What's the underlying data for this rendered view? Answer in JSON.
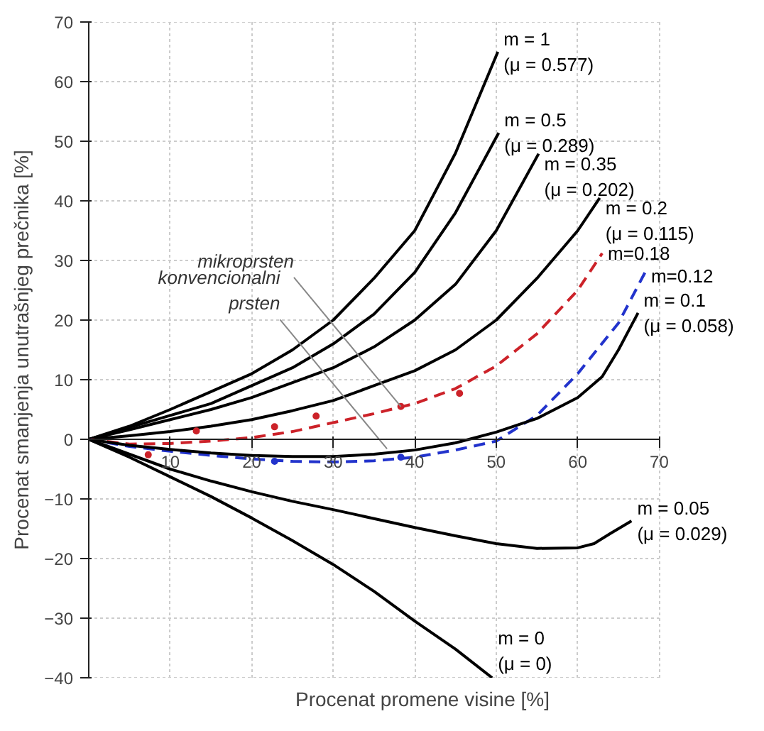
{
  "chart_data": {
    "type": "line",
    "xlabel": "Procenat promene visine [%]",
    "ylabel": "Procenat smanjenja unutrašnjeg prečnika [%]",
    "xlim": [
      0,
      70
    ],
    "ylim": [
      -40,
      70
    ],
    "xticks": [
      10,
      20,
      30,
      40,
      50,
      60,
      70
    ],
    "yticks": [
      -40,
      -30,
      -20,
      -10,
      0,
      10,
      20,
      30,
      40,
      50,
      60,
      70
    ],
    "grid": true,
    "legend": false,
    "marker": "none",
    "series": [
      {
        "name": "m = 1\n(μ = 0.577)",
        "color": "#000000",
        "line_style": "solid",
        "x": [
          0,
          5,
          10,
          15,
          20,
          25,
          30,
          35,
          40,
          45,
          50.2
        ],
        "values": [
          0,
          2.2,
          5,
          8,
          11,
          15,
          20,
          27,
          35,
          48,
          65
        ]
      },
      {
        "name": "m = 0.5\n(μ = 0.289)",
        "color": "#000000",
        "line_style": "solid",
        "x": [
          0,
          5,
          10,
          15,
          20,
          25,
          30,
          35,
          40,
          45,
          50.3
        ],
        "values": [
          0,
          2,
          4,
          6,
          9,
          12,
          16,
          21,
          28,
          38,
          51.4
        ]
      },
      {
        "name": "m = 0.35\n(μ = 0.202)",
        "color": "#000000",
        "line_style": "solid",
        "x": [
          0,
          5,
          10,
          15,
          20,
          25,
          30,
          35,
          40,
          45,
          50,
          55.2
        ],
        "values": [
          0,
          1.6,
          3.3,
          5,
          7,
          9.5,
          12,
          15.5,
          20,
          26,
          35,
          47.9
        ]
      },
      {
        "name": "m = 0.2\n(μ = 0.115)",
        "color": "#000000",
        "line_style": "solid",
        "x": [
          0,
          5,
          10,
          15,
          20,
          25,
          30,
          35,
          40,
          45,
          50,
          55,
          60,
          62.7
        ],
        "values": [
          0,
          0.6,
          1.3,
          2.2,
          3.3,
          4.8,
          6.5,
          9,
          11.5,
          15,
          20,
          27,
          35,
          40.5
        ]
      },
      {
        "name": "m=0.18",
        "color": "#cc2229",
        "line_style": "dashed",
        "x": [
          0,
          5,
          10,
          15,
          20,
          25,
          30,
          35,
          40,
          45,
          50,
          55,
          60,
          63
        ],
        "values": [
          0,
          -0.8,
          -0.7,
          -0.3,
          0.3,
          1.3,
          2.8,
          4.3,
          6,
          8.5,
          12.3,
          17.7,
          25,
          31.2
        ]
      },
      {
        "name": "m=0.12",
        "color": "#2233cc",
        "line_style": "dashed",
        "x": [
          0,
          5,
          10,
          15,
          20,
          25,
          30,
          35,
          40,
          45,
          50,
          55,
          60,
          65,
          68.3
        ],
        "values": [
          0,
          -1.2,
          -2,
          -2.7,
          -3.3,
          -3.7,
          -3.8,
          -3.6,
          -3,
          -1.8,
          -0.3,
          4,
          11,
          19.5,
          28.1
        ]
      },
      {
        "name": "m = 0.1\n(μ = 0.058)",
        "color": "#000000",
        "line_style": "solid",
        "x": [
          0,
          5,
          10,
          15,
          20,
          25,
          30,
          35,
          40,
          45,
          50,
          55,
          60,
          63,
          65,
          67.4
        ],
        "values": [
          0,
          -1,
          -1.7,
          -2.3,
          -2.7,
          -2.9,
          -2.9,
          -2.5,
          -1.8,
          -0.6,
          1.2,
          3.5,
          7,
          10.5,
          15,
          21.2
        ]
      },
      {
        "name": "m = 0.05\n(μ = 0.029)",
        "color": "#000000",
        "line_style": "solid",
        "x": [
          0,
          5,
          10,
          15,
          20,
          25,
          30,
          35,
          40,
          45,
          50,
          55,
          60,
          62,
          64,
          66.6
        ],
        "values": [
          0,
          -2.5,
          -5,
          -7,
          -8.8,
          -10.4,
          -11.8,
          -13.3,
          -14.8,
          -16.2,
          -17.5,
          -18.3,
          -18.2,
          -17.5,
          -15.8,
          -13.7
        ]
      },
      {
        "name": "m = 0\n(μ = 0)",
        "color": "#000000",
        "line_style": "solid",
        "x": [
          0,
          5,
          10,
          15,
          20,
          25,
          30,
          35,
          40,
          45,
          49.5
        ],
        "values": [
          0,
          -3,
          -6.3,
          -9.6,
          -13.2,
          -17,
          -21,
          -25.5,
          -30.5,
          -35.2,
          -40
        ]
      },
      {
        "type": "scatter",
        "marker": "circle",
        "color": "#cc2229",
        "x": [
          7.3,
          13.2,
          22.8,
          27.9,
          38.3,
          45.5
        ],
        "values": [
          -2.6,
          1.4,
          2.1,
          3.9,
          5.5,
          7.7
        ]
      },
      {
        "type": "scatter",
        "marker": "circle",
        "color": "#2233cc",
        "x": [
          22.8,
          38.3
        ],
        "values": [
          -3.7,
          -3.0
        ]
      }
    ],
    "annotations": [
      {
        "text": "mikroprsten",
        "x": 38.3,
        "y": 5.5
      },
      {
        "text": "konvencionalni\nprsten",
        "x": 36.6,
        "y": -1.6
      }
    ]
  }
}
